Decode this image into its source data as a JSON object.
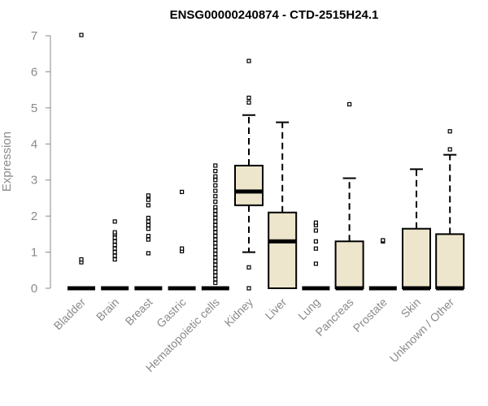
{
  "chart_data": {
    "type": "box",
    "title": "ENSG00000240874 - CTD-2515H24.1",
    "xlabel": "",
    "ylabel": "Expression",
    "ylim": [
      0,
      7
    ],
    "yticks": [
      0,
      1,
      2,
      3,
      4,
      5,
      6,
      7
    ],
    "grid": false,
    "box_fill": "#ede6cc",
    "categories": [
      "Bladder",
      "Brain",
      "Breast",
      "Gastric",
      "Hematopoietic cells",
      "Kidney",
      "Liver",
      "Lung",
      "Pancreas",
      "Prostate",
      "Skin",
      "Unknown / Other"
    ],
    "boxes": [
      {
        "q1": 0,
        "median": 0,
        "q3": 0,
        "whisker_low": 0,
        "whisker_high": 0,
        "outliers": [
          0.72,
          0.8,
          7.02
        ]
      },
      {
        "q1": 0,
        "median": 0,
        "q3": 0,
        "whisker_low": 0,
        "whisker_high": 0,
        "outliers": [
          0.8,
          0.9,
          1.0,
          1.1,
          1.2,
          1.3,
          1.4,
          1.5,
          1.55,
          1.85
        ]
      },
      {
        "q1": 0,
        "median": 0,
        "q3": 0,
        "whisker_low": 0,
        "whisker_high": 0,
        "outliers": [
          0.97,
          1.35,
          1.45,
          1.65,
          1.75,
          1.85,
          1.95,
          2.3,
          2.45,
          2.57
        ]
      },
      {
        "q1": 0,
        "median": 0,
        "q3": 0,
        "whisker_low": 0,
        "whisker_high": 0,
        "outliers": [
          1.03,
          1.1,
          2.67
        ]
      },
      {
        "q1": 0,
        "median": 0,
        "q3": 0,
        "whisker_low": 0,
        "whisker_high": 0,
        "outliers": [
          0.15,
          0.25,
          0.35,
          0.45,
          0.55,
          0.65,
          0.75,
          0.85,
          0.95,
          1.05,
          1.15,
          1.25,
          1.35,
          1.45,
          1.55,
          1.65,
          1.75,
          1.85,
          1.95,
          2.05,
          2.15,
          2.25,
          2.4,
          2.55,
          2.7,
          2.85,
          3.0,
          3.1,
          3.25,
          3.4
        ]
      },
      {
        "q1": 2.3,
        "median": 2.68,
        "q3": 3.4,
        "whisker_low": 1.0,
        "whisker_high": 4.8,
        "outliers": [
          0.0,
          0.58,
          5.15,
          5.28,
          6.3
        ]
      },
      {
        "q1": 0,
        "median": 1.3,
        "q3": 2.1,
        "whisker_low": 0,
        "whisker_high": 4.6,
        "outliers": []
      },
      {
        "q1": 0,
        "median": 0,
        "q3": 0,
        "whisker_low": 0,
        "whisker_high": 0,
        "outliers": [
          0.68,
          1.1,
          1.3,
          1.6,
          1.75,
          1.82
        ]
      },
      {
        "q1": 0,
        "median": 0,
        "q3": 1.3,
        "whisker_low": 0,
        "whisker_high": 3.05,
        "outliers": [
          5.1
        ]
      },
      {
        "q1": 0,
        "median": 0,
        "q3": 0,
        "whisker_low": 0,
        "whisker_high": 0,
        "outliers": [
          1.3,
          1.33
        ]
      },
      {
        "q1": 0,
        "median": 0,
        "q3": 1.65,
        "whisker_low": 0,
        "whisker_high": 3.3,
        "outliers": []
      },
      {
        "q1": 0,
        "median": 0,
        "q3": 1.5,
        "whisker_low": 0,
        "whisker_high": 3.7,
        "outliers": [
          3.85,
          4.35
        ]
      }
    ]
  }
}
